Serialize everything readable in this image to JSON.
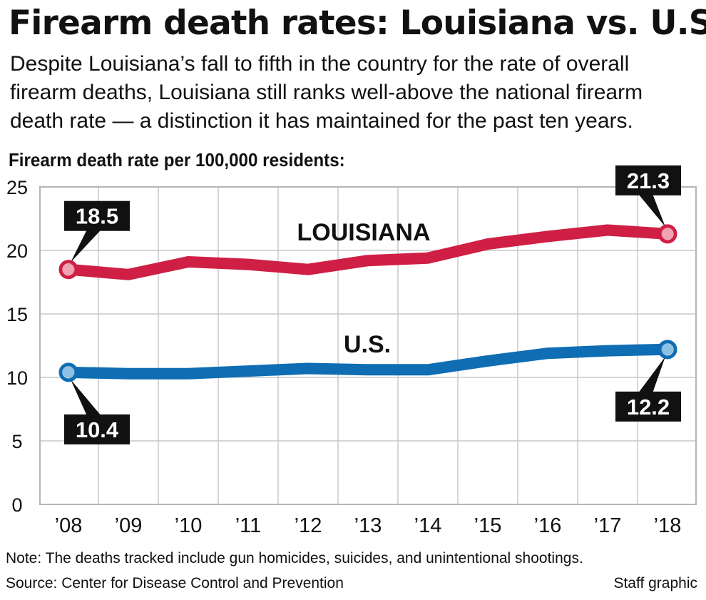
{
  "header": {
    "title": "Firearm death rates: Louisiana vs. U.S.",
    "subtitle": "Despite Louisiana’s fall to fifth in the country for the rate of overall firearm deaths, Louisiana still ranks well-above the national firearm death rate — a distinction it has maintained for the past ten years.",
    "chart_heading": "Firearm death rate per 100,000 residents:"
  },
  "footer": {
    "note": "Note: The deaths tracked include gun homicides, suicides, and unintentional shootings.",
    "source": "Source: Center for Disease Control and Prevention",
    "credit": "Staff graphic"
  },
  "chart_data": {
    "type": "line",
    "categories": [
      "’08",
      "’09",
      "’10",
      "’11",
      "’12",
      "’13",
      "’14",
      "’15",
      "’16",
      "’17",
      "’18"
    ],
    "ylim": [
      0,
      25
    ],
    "yticks": [
      0,
      5,
      10,
      15,
      20,
      25
    ],
    "grid": true,
    "series": [
      {
        "name": "LOUISIANA",
        "color": "#cf1f45",
        "values": [
          18.5,
          18.1,
          19.1,
          18.9,
          18.5,
          19.2,
          19.4,
          20.5,
          21.1,
          21.6,
          21.3
        ],
        "labels": [
          {
            "index": 0,
            "text": "18.5"
          },
          {
            "index": 10,
            "text": "21.3"
          }
        ]
      },
      {
        "name": "U.S.",
        "color": "#0f6db3",
        "values": [
          10.4,
          10.3,
          10.3,
          10.5,
          10.7,
          10.6,
          10.6,
          11.3,
          11.9,
          12.1,
          12.2
        ],
        "labels": [
          {
            "index": 0,
            "text": "10.4"
          },
          {
            "index": 10,
            "text": "12.2"
          }
        ]
      }
    ]
  }
}
